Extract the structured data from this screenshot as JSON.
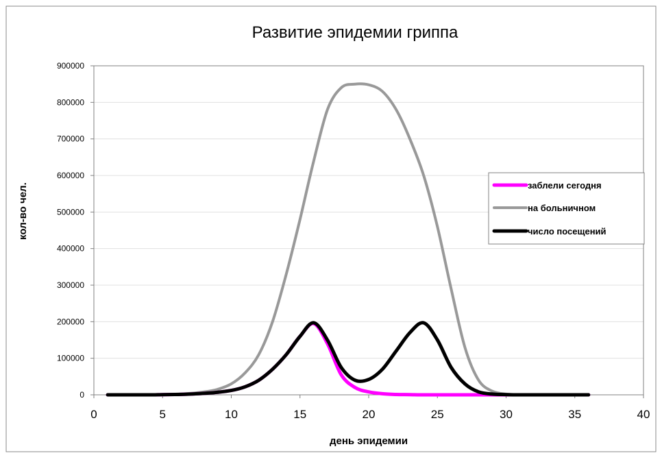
{
  "chart_data": {
    "type": "line",
    "title": "Развитие эпидемии гриппа",
    "xlabel": "день эпидемии",
    "ylabel": "кол-во чел.",
    "xlim": [
      0,
      40
    ],
    "ylim": [
      0,
      900000
    ],
    "x_ticks": [
      "0",
      "5",
      "10",
      "15",
      "20",
      "25",
      "30",
      "35",
      "40"
    ],
    "y_ticks": [
      "0",
      "100000",
      "200000",
      "300000",
      "400000",
      "500000",
      "600000",
      "700000",
      "800000",
      "900000"
    ],
    "grid": true,
    "legend_position": "right",
    "series": [
      {
        "name": "заблели сегодня",
        "color": "#ff00ff",
        "x": [
          1,
          2,
          3,
          4,
          5,
          6,
          7,
          8,
          9,
          10,
          11,
          12,
          13,
          14,
          15,
          16,
          17,
          18,
          19,
          20,
          21,
          22,
          23,
          24,
          25,
          26,
          27,
          28,
          29,
          30,
          31,
          32,
          33,
          34,
          35,
          36
        ],
        "y": [
          0,
          0,
          0,
          0,
          500,
          1000,
          2000,
          4000,
          7000,
          12000,
          22000,
          40000,
          70000,
          110000,
          160000,
          195000,
          140000,
          55000,
          20000,
          8000,
          3000,
          1000,
          500,
          0,
          0,
          0,
          0,
          0,
          0,
          0,
          0,
          0,
          0,
          0,
          0,
          0
        ]
      },
      {
        "name": "на больничном",
        "color": "#999999",
        "x": [
          1,
          2,
          3,
          4,
          5,
          6,
          7,
          8,
          9,
          10,
          11,
          12,
          13,
          14,
          15,
          16,
          17,
          18,
          19,
          20,
          21,
          22,
          23,
          24,
          25,
          26,
          27,
          28,
          29,
          30,
          31,
          32,
          33,
          34,
          35,
          36
        ],
        "y": [
          0,
          0,
          0,
          0,
          1000,
          2000,
          4000,
          8000,
          15000,
          30000,
          60000,
          110000,
          200000,
          330000,
          480000,
          640000,
          780000,
          840000,
          850000,
          848000,
          830000,
          780000,
          700000,
          600000,
          460000,
          290000,
          130000,
          40000,
          10000,
          2000,
          500,
          0,
          0,
          0,
          0,
          0
        ]
      },
      {
        "name": "число посещений",
        "color": "#000000",
        "x": [
          1,
          2,
          3,
          4,
          5,
          6,
          7,
          8,
          9,
          10,
          11,
          12,
          13,
          14,
          15,
          16,
          17,
          18,
          19,
          20,
          21,
          22,
          23,
          24,
          25,
          26,
          27,
          28,
          29,
          30,
          31,
          32,
          33,
          34,
          35,
          36
        ],
        "y": [
          0,
          0,
          0,
          0,
          500,
          1000,
          2000,
          4000,
          7000,
          12000,
          22000,
          40000,
          70000,
          110000,
          160000,
          197000,
          150000,
          75000,
          40000,
          42000,
          70000,
          120000,
          170000,
          197000,
          150000,
          75000,
          30000,
          8000,
          2000,
          500,
          0,
          0,
          0,
          0,
          0,
          0
        ]
      }
    ]
  }
}
